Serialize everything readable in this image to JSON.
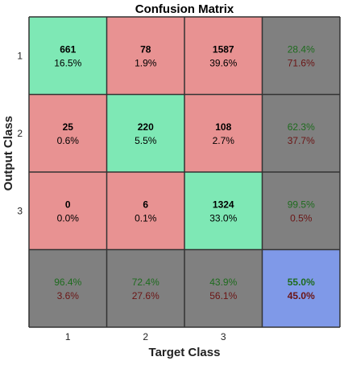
{
  "chart_data": {
    "type": "heatmap",
    "title": "Confusion Matrix",
    "xlabel": "Target Class",
    "ylabel": "Output Class",
    "target_classes": [
      "1",
      "2",
      "3"
    ],
    "output_classes": [
      "1",
      "2",
      "3"
    ],
    "cells": [
      [
        {
          "count": "661",
          "percent": "16.5%"
        },
        {
          "count": "78",
          "percent": "1.9%"
        },
        {
          "count": "1587",
          "percent": "39.6%"
        }
      ],
      [
        {
          "count": "25",
          "percent": "0.6%"
        },
        {
          "count": "220",
          "percent": "5.5%"
        },
        {
          "count": "108",
          "percent": "2.7%"
        }
      ],
      [
        {
          "count": "0",
          "percent": "0.0%"
        },
        {
          "count": "6",
          "percent": "0.1%"
        },
        {
          "count": "1324",
          "percent": "33.0%"
        }
      ]
    ],
    "row_summary": [
      {
        "correct": "28.4%",
        "incorrect": "71.6%"
      },
      {
        "correct": "62.3%",
        "incorrect": "37.7%"
      },
      {
        "correct": "99.5%",
        "incorrect": "0.5%"
      }
    ],
    "column_summary": [
      {
        "correct": "96.4%",
        "incorrect": "3.6%"
      },
      {
        "correct": "72.4%",
        "incorrect": "27.6%"
      },
      {
        "correct": "43.9%",
        "incorrect": "56.1%"
      }
    ],
    "overall": {
      "correct": "55.0%",
      "incorrect": "45.0%"
    },
    "colors": {
      "diagonal": "#7ee8b5",
      "off_diagonal": "#e89292",
      "summary": "#808080",
      "overall": "#7f99e8",
      "grid": "#333333",
      "correct_text": "#1e6b1e",
      "incorrect_text": "#6b1515"
    }
  }
}
